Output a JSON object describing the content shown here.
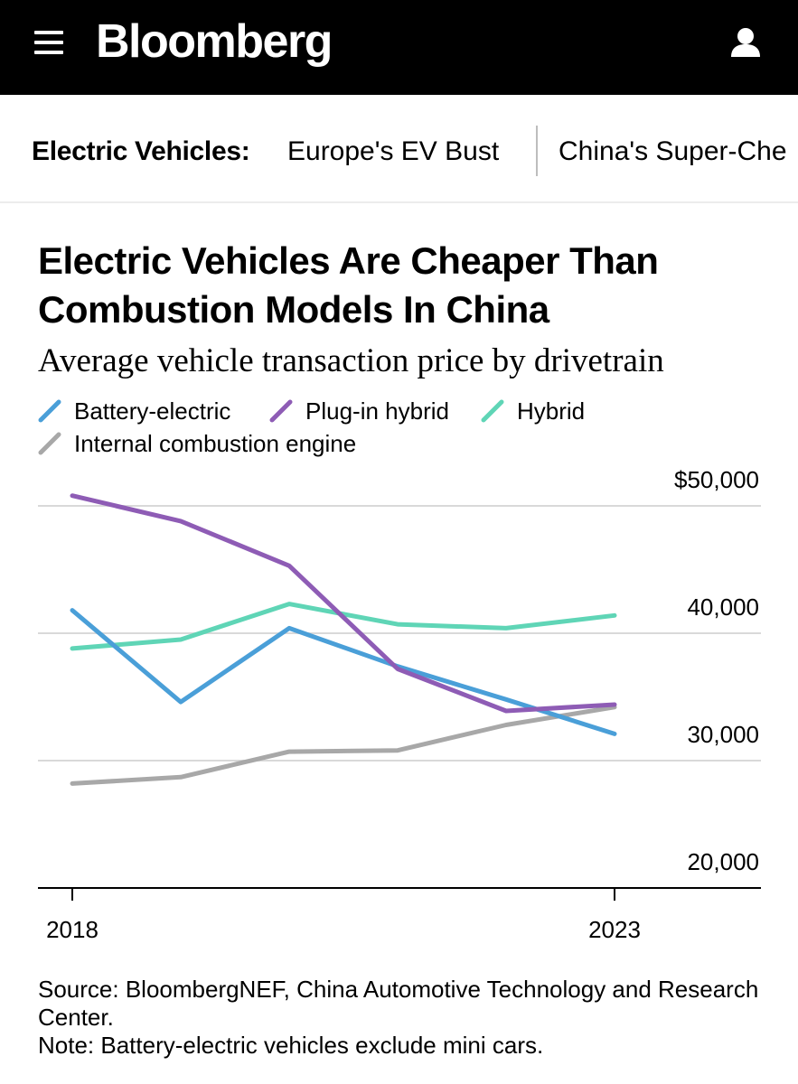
{
  "header": {
    "logo_text": "Bloomberg",
    "menu_icon": "hamburger-menu-icon",
    "user_icon": "user-icon",
    "background_color": "#000000"
  },
  "topic_nav": {
    "label": "Electric Vehicles:",
    "links": [
      "Europe's EV Bust",
      "China's Super-Che"
    ]
  },
  "source_note": {
    "source": "Source: BloombergNEF, China Automotive Technology and Research Center.",
    "note": "Note: Battery-electric vehicles exclude mini cars."
  },
  "chart_data": {
    "type": "line",
    "title": "Electric Vehicles Are Cheaper Than Combustion Models In China",
    "subtitle": "Average vehicle transaction price by drivetrain",
    "x": [
      2018,
      2019,
      2020,
      2021,
      2022,
      2023
    ],
    "x_tick_labels": [
      "2018",
      "2023"
    ],
    "y_tick_labels": [
      "$50,000",
      "40,000",
      "30,000",
      "20,000"
    ],
    "y_ticks": [
      50000,
      40000,
      30000,
      20000
    ],
    "ylim": [
      20000,
      50000
    ],
    "xlabel": "",
    "ylabel": "",
    "grid": true,
    "legend_position": "top-left",
    "series": [
      {
        "name": "Battery-electric",
        "color": "#4a9fd8",
        "values": [
          41800,
          34600,
          40400,
          37400,
          34800,
          32100
        ]
      },
      {
        "name": "Plug-in hybrid",
        "color": "#8e5cb5",
        "values": [
          50800,
          48800,
          45300,
          37200,
          33900,
          34400
        ]
      },
      {
        "name": "Hybrid",
        "color": "#5fd5b6",
        "values": [
          38800,
          39500,
          42300,
          40700,
          40400,
          41400
        ]
      },
      {
        "name": "Internal combustion engine",
        "color": "#a8a8a8",
        "values": [
          28200,
          28700,
          30700,
          30800,
          32800,
          34200
        ]
      }
    ]
  }
}
